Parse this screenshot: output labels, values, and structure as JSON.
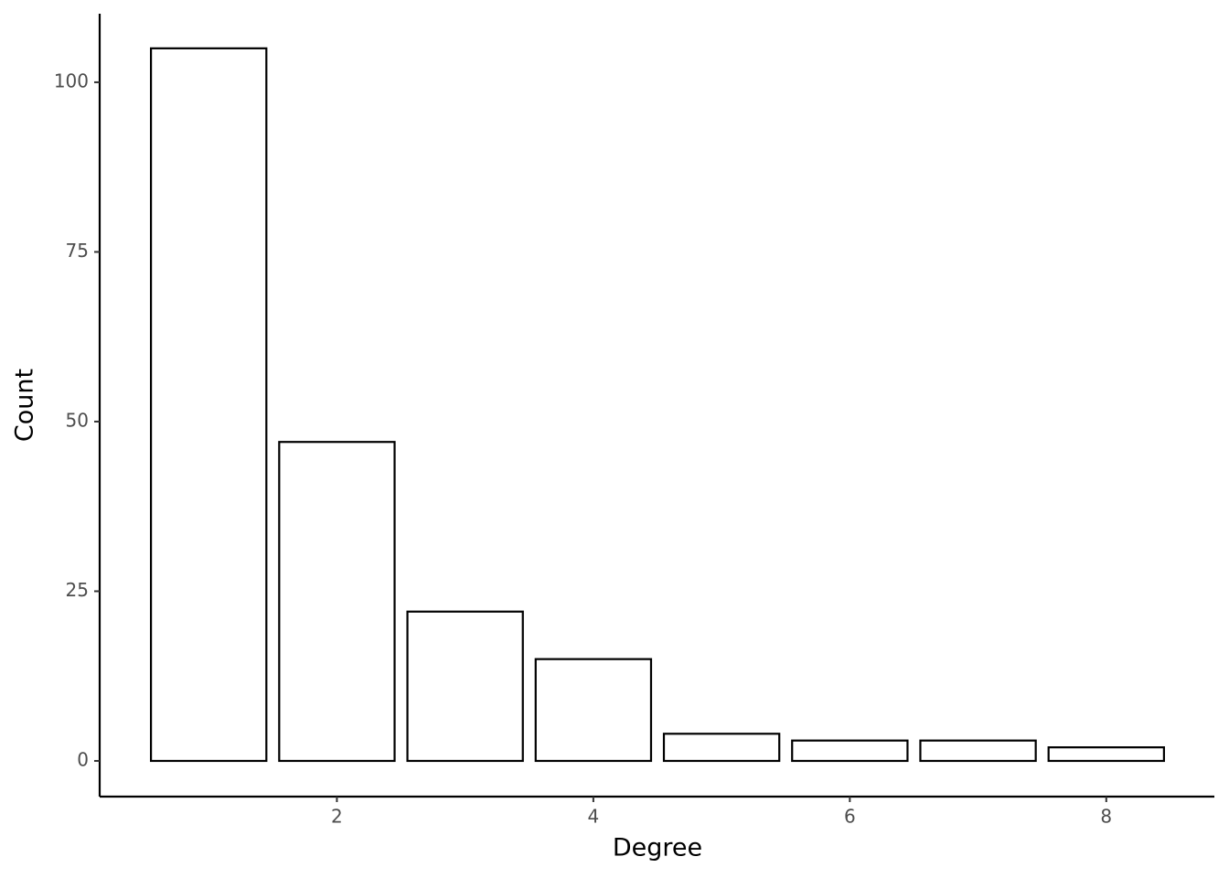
{
  "chart_data": {
    "type": "bar",
    "x": [
      1,
      2,
      3,
      4,
      5,
      6,
      7,
      8
    ],
    "values": [
      105,
      47,
      22,
      15,
      4,
      3,
      3,
      2
    ],
    "x_label": "Degree",
    "y_label": "Count",
    "xlim": [
      0.15,
      8.843
    ],
    "ylim": [
      -5.26,
      110.1
    ],
    "xticks": [
      2,
      4,
      6,
      8
    ],
    "yticks": [
      0,
      25,
      50,
      75,
      100
    ],
    "color": "#ffffff",
    "edge_color": "#000000",
    "grid": false
  }
}
